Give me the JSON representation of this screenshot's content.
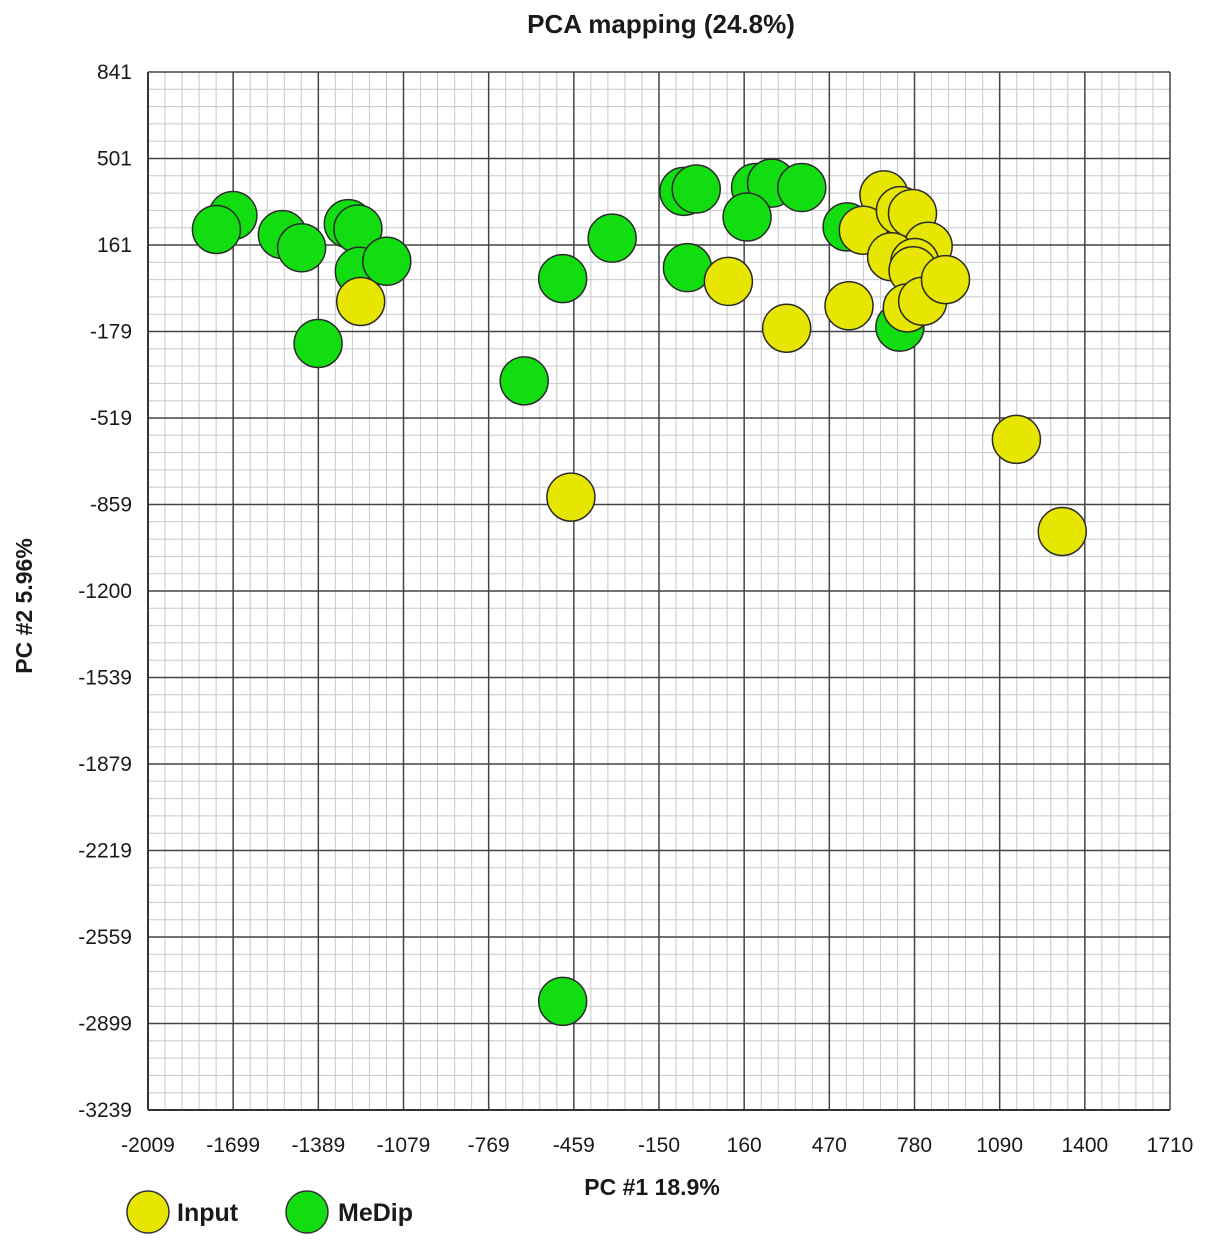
{
  "chart_data": {
    "type": "scatter",
    "title": "PCA mapping (24.8%)",
    "xlabel": "PC #1 18.9%",
    "ylabel": "PC #2 5.96%",
    "xlim": [
      -2009,
      1710
    ],
    "ylim": [
      -3239,
      841
    ],
    "xticks": [
      "-2009",
      "-1699",
      "-1389",
      "-1079",
      "-769",
      "-459",
      "-150",
      "160",
      "470",
      "780",
      "1090",
      "1400",
      "1710"
    ],
    "yticks": [
      "841",
      "501",
      "161",
      "-179",
      "-519",
      "-859",
      "-1200",
      "-1539",
      "-1879",
      "-2219",
      "-2559",
      "-2899",
      "-3239"
    ],
    "grid": true,
    "legend_position": "bottom-left",
    "series": [
      {
        "name": "MeDip",
        "color": "#11dd11",
        "points": [
          [
            -1700,
            277
          ],
          [
            -1760,
            222
          ],
          [
            -1520,
            202
          ],
          [
            -1450,
            150
          ],
          [
            -1280,
            245
          ],
          [
            -1245,
            224
          ],
          [
            -1240,
            58
          ],
          [
            -1140,
            97
          ],
          [
            -1390,
            -226
          ],
          [
            -640,
            -373
          ],
          [
            -500,
            29
          ],
          [
            -320,
            188
          ],
          [
            -46,
            72
          ],
          [
            -59,
            372
          ],
          [
            -14,
            381
          ],
          [
            202,
            387
          ],
          [
            260,
            404
          ],
          [
            171,
            271
          ],
          [
            370,
            387
          ],
          [
            535,
            232
          ],
          [
            727,
            -162
          ],
          [
            -500,
            -2812
          ]
        ]
      },
      {
        "name": "Input",
        "color": "#e6e600",
        "points": [
          [
            -1235,
            -61
          ],
          [
            -470,
            -830
          ],
          [
            103,
            18
          ],
          [
            315,
            -166
          ],
          [
            542,
            -78
          ],
          [
            669,
            358
          ],
          [
            594,
            219
          ],
          [
            729,
            296
          ],
          [
            773,
            285
          ],
          [
            830,
            156
          ],
          [
            697,
            115
          ],
          [
            781,
            92
          ],
          [
            775,
            60
          ],
          [
            754,
            -86
          ],
          [
            810,
            -60
          ],
          [
            893,
            25
          ],
          [
            1151,
            -603
          ],
          [
            1318,
            -965
          ]
        ]
      }
    ]
  }
}
